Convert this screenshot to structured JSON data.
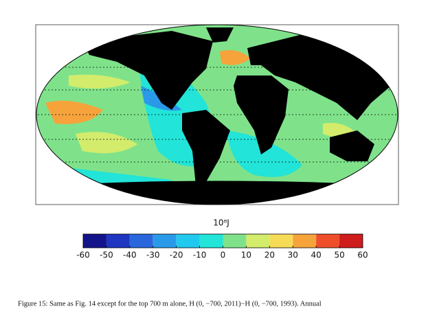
{
  "figure": {
    "colorbar": {
      "label": "10⁸J",
      "ticks": [
        -60,
        -50,
        -40,
        -30,
        -20,
        -10,
        0,
        10,
        20,
        30,
        40,
        50,
        60
      ],
      "colors": [
        "#14148a",
        "#1f36c0",
        "#2a66dc",
        "#2a9ae8",
        "#22c9ef",
        "#22e4d8",
        "#7fe28a",
        "#d3ec6c",
        "#f6dc56",
        "#f6a33c",
        "#ee4f2a",
        "#cf1c1c"
      ]
    },
    "caption": "Figure 15: Same as Fig. 14 except for the top 700 m alone, H (0, −700, 2011)−H (0, −700, 1993). Annual"
  }
}
